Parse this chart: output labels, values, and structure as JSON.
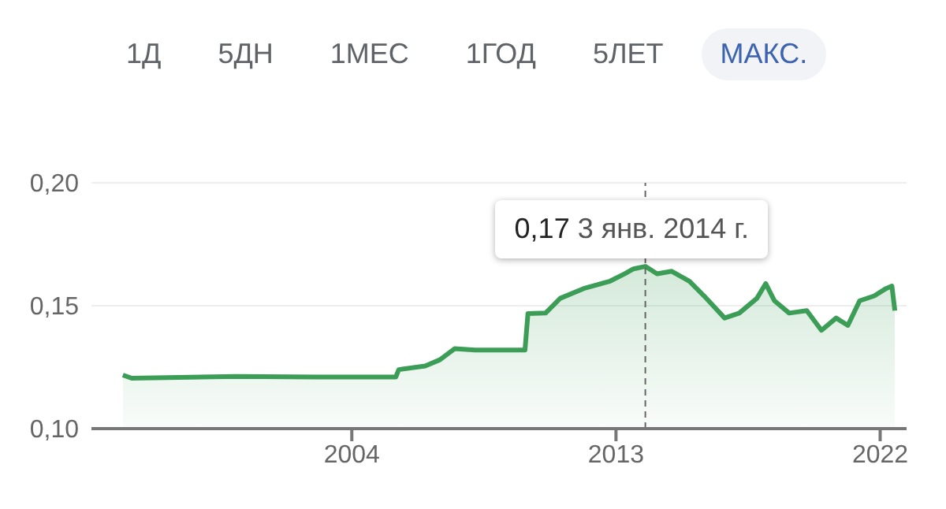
{
  "chart_data": {
    "type": "area",
    "x": [
      1996.2,
      1996.5,
      2000.05,
      2002.8,
      2005.5,
      2005.6,
      2006.5,
      2007.0,
      2007.5,
      2008.2,
      2009.9,
      2010.0,
      2010.6,
      2011.1,
      2011.9,
      2012.8,
      2013.3,
      2013.6,
      2014.0,
      2014.4,
      2014.9,
      2015.5,
      2016.0,
      2016.7,
      2017.2,
      2017.8,
      2018.1,
      2018.4,
      2018.9,
      2019.5,
      2020.0,
      2020.5,
      2020.9,
      2021.3,
      2021.8,
      2022.2,
      2022.4,
      2022.5
    ],
    "series": [
      {
        "color": "#3c9d57",
        "values": [
          0.1218,
          0.1205,
          0.1212,
          0.121,
          0.121,
          0.124,
          0.1255,
          0.128,
          0.1325,
          0.132,
          0.132,
          0.1468,
          0.147,
          0.153,
          0.157,
          0.16,
          0.163,
          0.165,
          0.166,
          0.163,
          0.164,
          0.16,
          0.154,
          0.145,
          0.147,
          0.153,
          0.159,
          0.152,
          0.147,
          0.148,
          0.14,
          0.145,
          0.142,
          0.152,
          0.154,
          0.157,
          0.158,
          0.148
        ]
      }
    ],
    "xlim": [
      1995.13,
      2022.9
    ],
    "xticks": [
      2004,
      2013,
      2022
    ],
    "ylim": [
      0.1,
      0.2
    ],
    "yticks": [
      {
        "value": 0.1,
        "label": "0,10"
      },
      {
        "value": 0.15,
        "label": "0,15"
      },
      {
        "value": 0.2,
        "label": "0,20"
      }
    ],
    "grid": "y",
    "marker": "none",
    "ref_lines": [
      {
        "axis": "x",
        "value": 2014.0,
        "line_style": "dashed",
        "color": "#666666"
      }
    ],
    "annotations": [
      "1Д",
      "5ДН",
      "1МЕС",
      "1ГОД",
      "5ЛЕТ",
      "МАКС.",
      {
        "text": "0,17 3 янв. 2014 г.",
        "x": 2014.0,
        "y": 0.17
      }
    ]
  }
}
